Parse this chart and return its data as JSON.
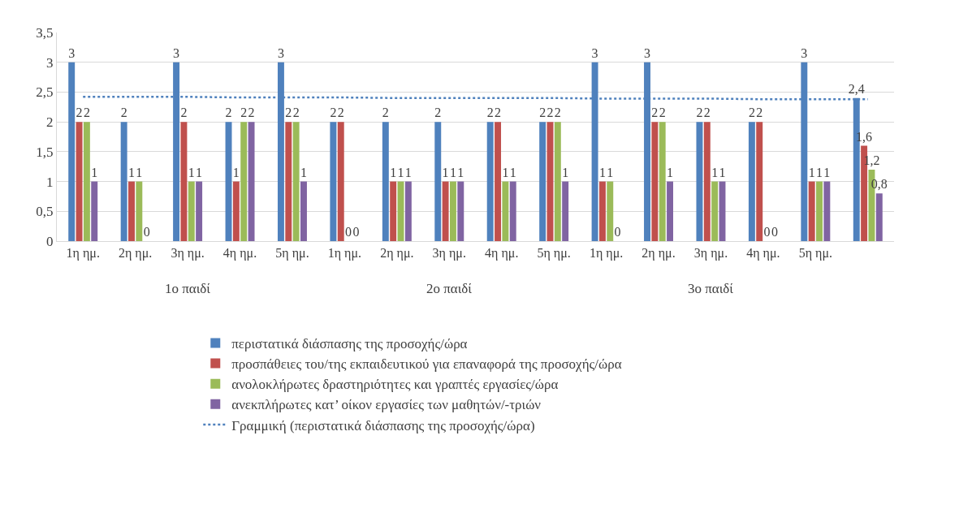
{
  "chart_data": {
    "type": "bar",
    "categories": [
      "1η ημ.",
      "2η ημ.",
      "3η ημ.",
      "4η ημ.",
      "5η ημ.",
      "1η ημ.",
      "2η ημ.",
      "3η ημ.",
      "4η ημ.",
      "5η ημ.",
      "1η ημ.",
      "2η ημ.",
      "3η ημ.",
      "4η ημ.",
      "5η ημ.",
      null
    ],
    "series": [
      {
        "name": "περιστατικά διάσπασης της προσοχής/ώρα",
        "color": "#4f81bd",
        "values": [
          3,
          2,
          3,
          2,
          3,
          2,
          2,
          2,
          2,
          2,
          3,
          3,
          2,
          2,
          3,
          2.4
        ],
        "value_labels": [
          "3",
          "2",
          "3",
          "2",
          "3",
          "2",
          "2",
          "2",
          "2",
          "2",
          "3",
          "3",
          "2",
          "2",
          "3",
          "2,4"
        ]
      },
      {
        "name": "προσπάθειες του/της εκπαιδευτικού για επαναφορά της προσοχής/ώρα",
        "color": "#c0504d",
        "values": [
          2,
          1,
          2,
          1,
          2,
          2,
          1,
          1,
          2,
          2,
          1,
          2,
          2,
          2,
          1,
          1.6
        ],
        "value_labels": [
          "2",
          "1",
          "2",
          "1",
          "2",
          "2",
          "1",
          "1",
          "2",
          "2",
          "1",
          "2",
          "2",
          "2",
          "1",
          "1,6"
        ]
      },
      {
        "name": "ανολοκλήρωτες δραστηριότητες και γραπτές εργασίες/ώρα",
        "color": "#9bbb59",
        "values": [
          2,
          1,
          1,
          2,
          2,
          0,
          1,
          1,
          1,
          2,
          1,
          2,
          1,
          0,
          1,
          1.2
        ],
        "value_labels": [
          "2",
          "1",
          "1",
          "2",
          "2",
          "0",
          "1",
          "1",
          "1",
          "2",
          "1",
          "2",
          "1",
          "0",
          "1",
          "1,2"
        ]
      },
      {
        "name": "ανεκπλήρωτες κατ’ οίκον εργασίες των μαθητών/-τριών",
        "color": "#8064a2",
        "values": [
          1,
          0,
          1,
          2,
          1,
          0,
          1,
          1,
          1,
          1,
          0,
          1,
          1,
          0,
          1,
          0.8
        ],
        "value_labels": [
          "1",
          "0",
          "1",
          "2",
          "1",
          "0",
          "1",
          "1",
          "1",
          "1",
          "0",
          "1",
          "1",
          "0",
          "1",
          "0,8"
        ]
      },
      {
        "name": "Γραμμική (περιστατικά διάσπασης της προσοχής/ώρα)",
        "type": "line",
        "line_style": "dotted",
        "color": "#4f81bd",
        "values": [
          2.42,
          2.42,
          2.42,
          2.41,
          2.41,
          2.41,
          2.4,
          2.4,
          2.4,
          2.4,
          2.39,
          2.39,
          2.39,
          2.38,
          2.38,
          2.38
        ]
      }
    ],
    "annotations": [
      "1ο παιδί",
      "2ο παιδί",
      "3ο παιδί"
    ],
    "ylim": [
      0,
      3.5
    ],
    "yticks": [
      0,
      {
        "value": 0.5,
        "label": "0,5"
      },
      1,
      {
        "value": 1.5,
        "label": "1,5"
      },
      2,
      {
        "value": 2.5,
        "label": "2,5"
      },
      3,
      {
        "value": 3.5,
        "label": "3,5"
      }
    ],
    "grid": "y",
    "legend": "bottom"
  }
}
